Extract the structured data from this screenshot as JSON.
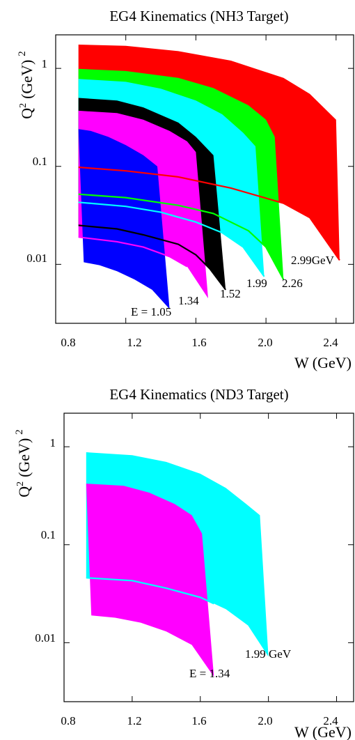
{
  "chart_data": [
    {
      "type": "area",
      "title": "EG4 Kinematics (NH3 Target)",
      "xlabel": "W (GeV)",
      "ylabel_base": "Q",
      "ylabel_sup": "2",
      "ylabel_unit": "(GeV)",
      "ylabel_unit_sup": "2",
      "x_ticks": [
        "0.8",
        "1.2",
        "1.6",
        "2.0",
        "2.4"
      ],
      "y_ticks": [
        "0.01",
        "0.1",
        "1"
      ],
      "xlim": [
        0.8,
        2.5
      ],
      "ylim": [
        0.0025,
        2.2
      ],
      "yscale": "log",
      "grid": false,
      "series": [
        {
          "energy_gev": 2.99,
          "color": "#ff0000",
          "upper": [
            [
              0.93,
              1.75
            ],
            [
              1.2,
              1.7
            ],
            [
              1.5,
              1.5
            ],
            [
              1.8,
              1.2
            ],
            [
              2.1,
              0.8
            ],
            [
              2.25,
              0.55
            ],
            [
              2.4,
              0.3
            ]
          ],
          "right": [
            [
              2.4,
              0.3
            ],
            [
              2.42,
              0.011
            ]
          ],
          "lower": [
            [
              0.93,
              0.098
            ],
            [
              1.2,
              0.09
            ],
            [
              1.5,
              0.078
            ],
            [
              1.8,
              0.06
            ],
            [
              2.1,
              0.042
            ],
            [
              2.25,
              0.03
            ],
            [
              2.42,
              0.011
            ]
          ],
          "line": [
            [
              0.93,
              0.098
            ],
            [
              1.2,
              0.09
            ],
            [
              1.5,
              0.078
            ],
            [
              1.8,
              0.06
            ],
            [
              2.1,
              0.042
            ],
            [
              2.25,
              0.03
            ],
            [
              2.42,
              0.011
            ]
          ]
        },
        {
          "energy_gev": 2.26,
          "color": "#00ff00",
          "upper": [
            [
              0.93,
              0.99
            ],
            [
              1.2,
              0.94
            ],
            [
              1.5,
              0.8
            ],
            [
              1.7,
              0.63
            ],
            [
              1.9,
              0.42
            ],
            [
              2.0,
              0.3
            ],
            [
              2.05,
              0.2
            ]
          ],
          "right": [
            [
              2.05,
              0.2
            ],
            [
              2.1,
              0.007
            ]
          ],
          "lower": [
            [
              0.93,
              0.052
            ],
            [
              1.2,
              0.048
            ],
            [
              1.5,
              0.04
            ],
            [
              1.7,
              0.033
            ],
            [
              1.9,
              0.022
            ],
            [
              2.0,
              0.015
            ],
            [
              2.1,
              0.007
            ]
          ],
          "line": [
            [
              0.93,
              0.052
            ],
            [
              1.2,
              0.048
            ],
            [
              1.5,
              0.04
            ],
            [
              1.7,
              0.033
            ],
            [
              1.9,
              0.022
            ],
            [
              2.0,
              0.015
            ],
            [
              2.1,
              0.007
            ]
          ]
        },
        {
          "energy_gev": 1.99,
          "color": "#00ffff",
          "upper": [
            [
              0.93,
              0.78
            ],
            [
              1.2,
              0.73
            ],
            [
              1.4,
              0.62
            ],
            [
              1.6,
              0.47
            ],
            [
              1.75,
              0.34
            ],
            [
              1.87,
              0.22
            ],
            [
              1.94,
              0.16
            ]
          ],
          "right": [
            [
              1.94,
              0.16
            ],
            [
              1.99,
              0.0075
            ]
          ],
          "lower": [
            [
              0.93,
              0.043
            ],
            [
              1.2,
              0.039
            ],
            [
              1.4,
              0.034
            ],
            [
              1.6,
              0.027
            ],
            [
              1.75,
              0.021
            ],
            [
              1.87,
              0.015
            ],
            [
              1.99,
              0.0075
            ]
          ],
          "line": [
            [
              0.93,
              0.043
            ],
            [
              1.2,
              0.039
            ],
            [
              1.4,
              0.034
            ],
            [
              1.6,
              0.027
            ],
            [
              1.75,
              0.021
            ],
            [
              1.87,
              0.015
            ],
            [
              1.99,
              0.0075
            ]
          ]
        },
        {
          "energy_gev": 1.52,
          "color": "#000000",
          "upper": [
            [
              0.93,
              0.5
            ],
            [
              1.15,
              0.47
            ],
            [
              1.3,
              0.4
            ],
            [
              1.5,
              0.28
            ],
            [
              1.6,
              0.2
            ],
            [
              1.7,
              0.13
            ]
          ],
          "right": [
            [
              1.7,
              0.13
            ],
            [
              1.77,
              0.0055
            ]
          ],
          "lower": [
            [
              0.93,
              0.025
            ],
            [
              1.15,
              0.023
            ],
            [
              1.3,
              0.02
            ],
            [
              1.5,
              0.016
            ],
            [
              1.6,
              0.0125
            ],
            [
              1.68,
              0.009
            ],
            [
              1.77,
              0.0055
            ]
          ],
          "line": [
            [
              0.93,
              0.025
            ],
            [
              1.15,
              0.023
            ],
            [
              1.3,
              0.02
            ],
            [
              1.5,
              0.016
            ],
            [
              1.6,
              0.0125
            ],
            [
              1.68,
              0.009
            ],
            [
              1.77,
              0.0055
            ]
          ]
        },
        {
          "energy_gev": 1.34,
          "color": "#ff00ff",
          "upper": [
            [
              0.93,
              0.37
            ],
            [
              1.15,
              0.35
            ],
            [
              1.3,
              0.3
            ],
            [
              1.45,
              0.23
            ],
            [
              1.55,
              0.18
            ],
            [
              1.6,
              0.14
            ]
          ],
          "right": [
            [
              1.6,
              0.14
            ],
            [
              1.67,
              0.0045
            ]
          ],
          "lower": [
            [
              0.93,
              0.019
            ],
            [
              1.15,
              0.017
            ],
            [
              1.3,
              0.015
            ],
            [
              1.45,
              0.012
            ],
            [
              1.55,
              0.0095
            ],
            [
              1.67,
              0.0045
            ]
          ],
          "line": [
            [
              0.93,
              0.019
            ],
            [
              1.15,
              0.017
            ],
            [
              1.3,
              0.015
            ],
            [
              1.45,
              0.012
            ],
            [
              1.55,
              0.0095
            ]
          ]
        },
        {
          "energy_gev": 1.05,
          "color": "#0000ff",
          "upper": [
            [
              0.93,
              0.24
            ],
            [
              1.0,
              0.23
            ],
            [
              1.1,
              0.2
            ],
            [
              1.2,
              0.165
            ],
            [
              1.3,
              0.13
            ],
            [
              1.38,
              0.1
            ]
          ],
          "right": [
            [
              1.38,
              0.1
            ],
            [
              1.45,
              0.0035
            ]
          ],
          "lower": [
            [
              0.96,
              0.0105
            ],
            [
              1.05,
              0.0098
            ],
            [
              1.15,
              0.0085
            ],
            [
              1.25,
              0.007
            ],
            [
              1.35,
              0.0055
            ],
            [
              1.45,
              0.0035
            ]
          ],
          "line": []
        }
      ],
      "annotations": [
        "E = 1.05",
        "1.34",
        "1.52",
        "1.99",
        "2.26",
        "2.99GeV"
      ]
    },
    {
      "type": "area",
      "title": "EG4 Kinematics (ND3 Target)",
      "xlabel": "W (GeV)",
      "ylabel_base": "Q",
      "ylabel_sup": "2",
      "ylabel_unit": "(GeV)",
      "ylabel_unit_sup": "2",
      "x_ticks": [
        "0.8",
        "1.2",
        "1.6",
        "2.0",
        "2.4"
      ],
      "y_ticks": [
        "0.01",
        "0.1",
        "1"
      ],
      "xlim": [
        0.8,
        2.5
      ],
      "ylim": [
        0.0025,
        2.2
      ],
      "yscale": "log",
      "grid": false,
      "series": [
        {
          "energy_gev": 1.99,
          "color": "#00ffff",
          "upper": [
            [
              0.93,
              0.88
            ],
            [
              1.2,
              0.82
            ],
            [
              1.4,
              0.7
            ],
            [
              1.6,
              0.53
            ],
            [
              1.75,
              0.38
            ],
            [
              1.87,
              0.26
            ],
            [
              1.95,
              0.2
            ]
          ],
          "right": [
            [
              1.95,
              0.2
            ],
            [
              2.0,
              0.0072
            ]
          ],
          "lower": [
            [
              0.93,
              0.046
            ],
            [
              1.2,
              0.042
            ],
            [
              1.4,
              0.037
            ],
            [
              1.6,
              0.029
            ],
            [
              1.75,
              0.022
            ],
            [
              1.88,
              0.015
            ],
            [
              2.0,
              0.0072
            ]
          ],
          "line": [
            [
              0.93,
              0.046
            ],
            [
              1.2,
              0.043
            ],
            [
              1.4,
              0.036
            ],
            [
              1.6,
              0.029
            ],
            [
              1.68,
              0.025
            ]
          ]
        },
        {
          "energy_gev": 1.34,
          "color": "#ff00ff",
          "upper": [
            [
              0.93,
              0.42
            ],
            [
              1.15,
              0.4
            ],
            [
              1.3,
              0.34
            ],
            [
              1.45,
              0.26
            ],
            [
              1.55,
              0.2
            ],
            [
              1.61,
              0.13
            ]
          ],
          "right": [
            [
              1.61,
              0.13
            ],
            [
              1.68,
              0.0045
            ]
          ],
          "lower": [
            [
              0.96,
              0.019
            ],
            [
              1.1,
              0.018
            ],
            [
              1.25,
              0.016
            ],
            [
              1.4,
              0.013
            ],
            [
              1.55,
              0.0095
            ],
            [
              1.68,
              0.0045
            ]
          ],
          "line": []
        }
      ],
      "annotations": [
        "E = 1.34",
        "1.99 GeV"
      ]
    }
  ]
}
